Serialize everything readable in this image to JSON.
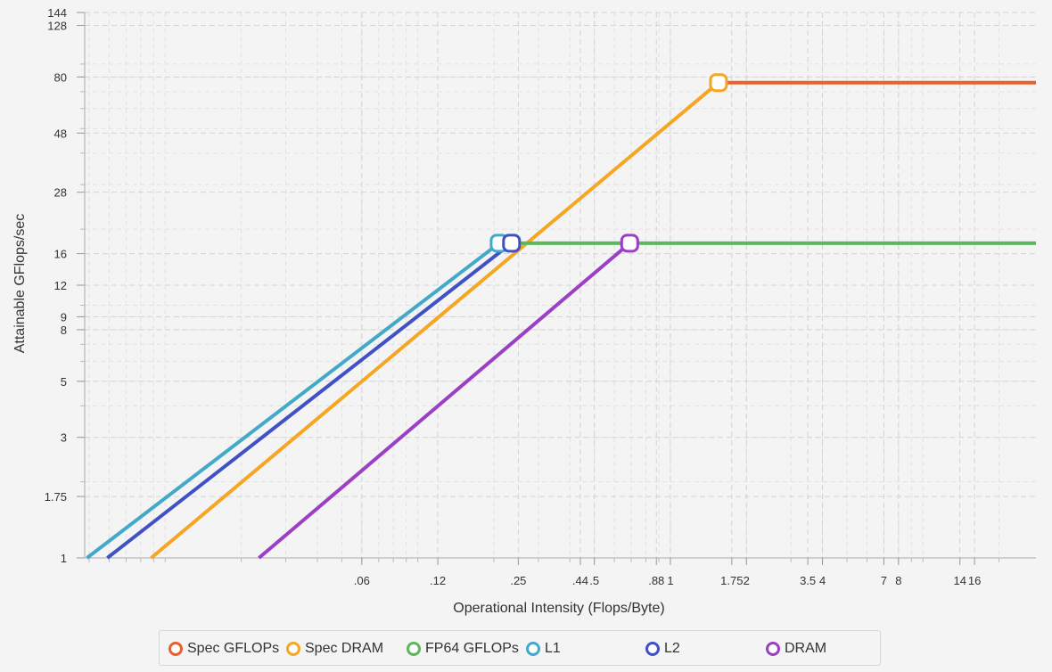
{
  "chart_data": {
    "type": "line",
    "title": "",
    "xlabel": "Operational Intensity (Flops/Byte)",
    "ylabel": "Attainable GFlops/sec",
    "x_scale": "log",
    "y_scale": "log",
    "xlim": [
      0.0048,
      28
    ],
    "ylim": [
      1,
      144
    ],
    "x_ticks": [
      ".06",
      ".12",
      ".25",
      ".44",
      ".5",
      ".88",
      "1",
      "1.75",
      "2",
      "3.5",
      "4",
      "7",
      "8",
      "14",
      "16"
    ],
    "y_ticks": [
      "1",
      "1.75",
      "3",
      "5",
      "8",
      "9",
      "12",
      "16",
      "28",
      "48",
      "80",
      "128",
      "144"
    ],
    "grid": true,
    "legend_position": "bottom",
    "series": [
      {
        "name": "Spec GFLOPs",
        "color": "#e8602c",
        "points": [
          [
            1.55,
            76
          ],
          [
            28,
            76
          ]
        ],
        "marker_points": []
      },
      {
        "name": "Spec DRAM",
        "color": "#f5a623",
        "points": [
          [
            0.0088,
            1
          ],
          [
            1.55,
            76
          ]
        ],
        "marker_points": [
          [
            1.55,
            76
          ]
        ]
      },
      {
        "name": "FP64 GFLOPs",
        "color": "#5cb85c",
        "points": [
          [
            0.21,
            17.6
          ],
          [
            28,
            17.6
          ]
        ],
        "marker_points": []
      },
      {
        "name": "L1",
        "color": "#43a9c9",
        "points": [
          [
            0.0049,
            1
          ],
          [
            0.21,
            17.6
          ]
        ],
        "marker_points": [
          [
            0.21,
            17.6
          ]
        ]
      },
      {
        "name": "L2",
        "color": "#3f51c4",
        "points": [
          [
            0.0059,
            1
          ],
          [
            0.235,
            17.6
          ]
        ],
        "marker_points": [
          [
            0.235,
            17.6
          ]
        ]
      },
      {
        "name": "DRAM",
        "color": "#9b3fc4",
        "points": [
          [
            0.0235,
            1
          ],
          [
            0.69,
            17.6
          ]
        ],
        "marker_points": [
          [
            0.69,
            17.6
          ]
        ]
      }
    ]
  }
}
